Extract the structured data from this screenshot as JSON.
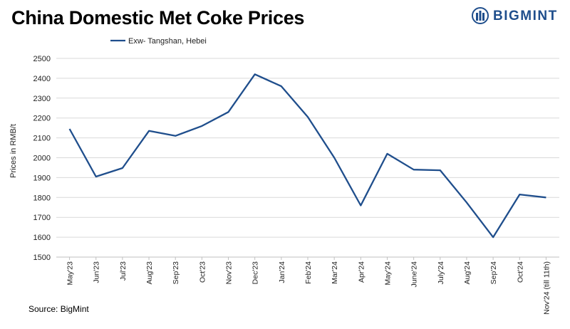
{
  "title": "China Domestic Met Coke Prices",
  "brand": {
    "name": "BIGMINT",
    "logo_icon": "bigmint-logo-icon",
    "color": "#1f4e8c"
  },
  "source": "Source: BigMint",
  "chart_data": {
    "type": "line",
    "title": "China Domestic Met Coke Prices",
    "xlabel": "",
    "ylabel": "Prices in RMB/t",
    "ylim": [
      1500,
      2500
    ],
    "yticks": [
      1500,
      1600,
      1700,
      1800,
      1900,
      2000,
      2100,
      2200,
      2300,
      2400,
      2500
    ],
    "grid": true,
    "legend_position": "top-left",
    "categories": [
      "May'23",
      "Jun'23",
      "Jul'23",
      "Aug'23",
      "Sep'23",
      "Oct'23",
      "Nov'23",
      "Dec'23",
      "Jan'24",
      "Feb'24",
      "Mar'24",
      "Apr'24",
      "May'24",
      "June'24",
      "July'24",
      "Aug'24",
      "Sep'24",
      "Oct'24",
      "Nov'24 (till 11th)"
    ],
    "series": [
      {
        "name": "Exw- Tangshan, Hebei",
        "color": "#1f4e8c",
        "values": [
          2145,
          1905,
          1948,
          2135,
          2110,
          2160,
          2230,
          2420,
          2360,
          2205,
          2000,
          1760,
          2020,
          1940,
          1937,
          1775,
          1600,
          1815,
          1800
        ]
      }
    ]
  }
}
